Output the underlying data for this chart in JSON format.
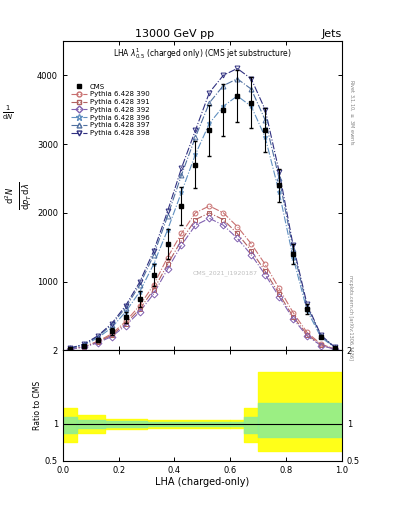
{
  "title_top": "13000 GeV pp",
  "title_right": "Jets",
  "plot_label": "LHA $\\lambda^{1}_{0.5}$ (charged only) (CMS jet substructure)",
  "watermark": "CMS_2021_I1920187",
  "xlabel": "LHA (charged-only)",
  "ylabel_ratio": "Ratio to CMS",
  "xlim": [
    0,
    1
  ],
  "ylim_main": [
    0,
    4500
  ],
  "ylim_ratio": [
    0.5,
    2.0
  ],
  "cms_x": [
    0.025,
    0.075,
    0.125,
    0.175,
    0.225,
    0.275,
    0.325,
    0.375,
    0.425,
    0.475,
    0.525,
    0.575,
    0.625,
    0.675,
    0.725,
    0.775,
    0.825,
    0.875,
    0.925,
    0.975
  ],
  "cms_y": [
    20,
    60,
    150,
    280,
    480,
    750,
    1100,
    1550,
    2100,
    2700,
    3200,
    3500,
    3700,
    3600,
    3200,
    2400,
    1400,
    600,
    200,
    40
  ],
  "cms_yerr": [
    5,
    15,
    30,
    50,
    80,
    120,
    160,
    220,
    280,
    340,
    370,
    380,
    380,
    370,
    320,
    240,
    140,
    70,
    25,
    8
  ],
  "py390_y": [
    18,
    55,
    130,
    240,
    420,
    650,
    950,
    1350,
    1700,
    2000,
    2100,
    2000,
    1800,
    1550,
    1250,
    900,
    550,
    260,
    90,
    20
  ],
  "py391_y": [
    16,
    50,
    120,
    220,
    390,
    600,
    880,
    1250,
    1600,
    1900,
    2000,
    1900,
    1700,
    1450,
    1150,
    820,
    490,
    230,
    80,
    18
  ],
  "py392_y": [
    15,
    45,
    110,
    200,
    360,
    560,
    820,
    1180,
    1530,
    1820,
    1920,
    1820,
    1630,
    1390,
    1100,
    780,
    460,
    210,
    70,
    15
  ],
  "py396_y": [
    25,
    75,
    180,
    330,
    560,
    850,
    1250,
    1750,
    2300,
    2850,
    3300,
    3550,
    3700,
    3550,
    3100,
    2300,
    1350,
    580,
    190,
    38
  ],
  "py397_y": [
    28,
    85,
    200,
    370,
    620,
    950,
    1380,
    1950,
    2550,
    3100,
    3600,
    3850,
    3950,
    3800,
    3350,
    2500,
    1470,
    640,
    210,
    42
  ],
  "py398_y": [
    30,
    90,
    210,
    390,
    650,
    990,
    1440,
    2020,
    2650,
    3200,
    3750,
    4000,
    4100,
    3950,
    3500,
    2600,
    1530,
    670,
    220,
    44
  ],
  "ratio_x_edges": [
    0.0,
    0.05,
    0.15,
    0.3,
    0.6,
    0.65,
    0.7,
    1.0
  ],
  "ratio_yellow_lo_vals": [
    0.75,
    0.88,
    0.93,
    0.95,
    0.95,
    0.75,
    0.63,
    0.63
  ],
  "ratio_yellow_hi_vals": [
    1.22,
    1.12,
    1.07,
    1.05,
    1.05,
    1.22,
    1.7,
    1.7
  ],
  "ratio_green_lo_vals": [
    0.88,
    0.94,
    0.96,
    0.97,
    0.97,
    0.88,
    0.82,
    0.82
  ],
  "ratio_green_hi_vals": [
    1.1,
    1.06,
    1.04,
    1.03,
    1.03,
    1.1,
    1.28,
    1.28
  ],
  "colors": {
    "py390": "#c87070",
    "py391": "#b06060",
    "py392": "#8060b0",
    "py396": "#6090c0",
    "py397": "#5070a0",
    "py398": "#303080"
  },
  "linestyles": {
    "py390": "-.",
    "py391": "-.",
    "py392": "-.",
    "py396": "-.",
    "py397": "-.",
    "py398": "-."
  },
  "markers": {
    "py390": "o",
    "py391": "s",
    "py392": "D",
    "py396": "*",
    "py397": "^",
    "py398": "v"
  },
  "background_color": "#ffffff"
}
